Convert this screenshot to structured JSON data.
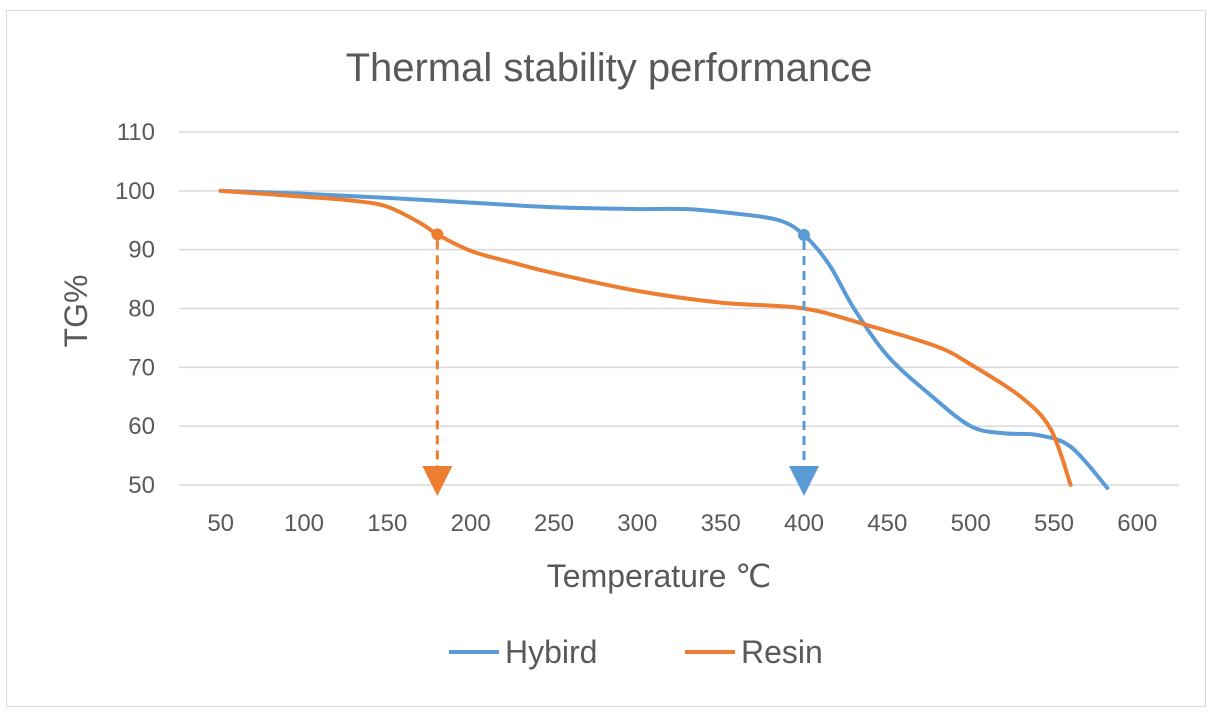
{
  "chart_data": {
    "type": "line",
    "title": "Thermal stability performance",
    "xlabel": "Temperature ℃",
    "ylabel": "TG%",
    "xlim": [
      25,
      625
    ],
    "ylim": [
      50,
      110
    ],
    "x_ticks": [
      50,
      100,
      150,
      200,
      250,
      300,
      350,
      400,
      450,
      500,
      550,
      600
    ],
    "y_ticks": [
      50,
      60,
      70,
      80,
      90,
      100,
      110
    ],
    "grid": true,
    "legend_position": "bottom",
    "series": [
      {
        "name": "Hybird",
        "color": "#5b9bd5",
        "points": [
          [
            50,
            100
          ],
          [
            100,
            99.5
          ],
          [
            150,
            98.8
          ],
          [
            200,
            98.0
          ],
          [
            250,
            97.2
          ],
          [
            300,
            96.9
          ],
          [
            330,
            96.9
          ],
          [
            360,
            96.1
          ],
          [
            385,
            95.0
          ],
          [
            400,
            92.5
          ],
          [
            415,
            87.5
          ],
          [
            430,
            80.0
          ],
          [
            450,
            72.0
          ],
          [
            475,
            65.5
          ],
          [
            500,
            60.0
          ],
          [
            520,
            58.8
          ],
          [
            540,
            58.5
          ],
          [
            560,
            56.5
          ],
          [
            582,
            49.5
          ]
        ],
        "marker": [
          400,
          92.5
        ]
      },
      {
        "name": "Resin",
        "color": "#ed7d31",
        "points": [
          [
            50,
            100
          ],
          [
            100,
            99.0
          ],
          [
            130,
            98.3
          ],
          [
            150,
            97.3
          ],
          [
            170,
            94.5
          ],
          [
            180,
            92.6
          ],
          [
            200,
            89.8
          ],
          [
            225,
            87.8
          ],
          [
            250,
            86.0
          ],
          [
            300,
            83.0
          ],
          [
            350,
            81.0
          ],
          [
            400,
            80.0
          ],
          [
            440,
            77.0
          ],
          [
            480,
            73.5
          ],
          [
            500,
            70.5
          ],
          [
            530,
            65.0
          ],
          [
            548,
            59.5
          ],
          [
            560,
            50.0
          ]
        ],
        "marker": [
          180,
          92.6
        ]
      }
    ]
  }
}
